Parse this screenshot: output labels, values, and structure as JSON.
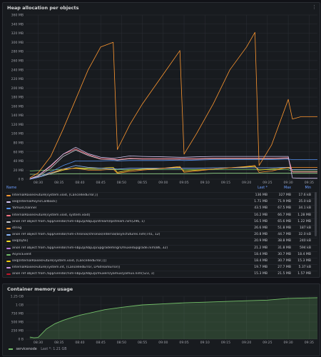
{
  "panels": {
    "heap_title": "Heap allocation per objects",
    "memory_title": "Container memory usage",
    "menu_glyph": "⋮"
  },
  "legend": {
    "columns": [
      "Name",
      "Last *",
      "Max",
      "Min"
    ],
    "rows": [
      {
        "name": "InternalRaisesFuture[system.void, (CancelledError,)]",
        "last": "136 MB",
        "max": "327 MB",
        "min": "17.6 kB",
        "color": "#ff9830"
      },
      {
        "name": "seq[InternalAsyncCallback]",
        "last": "1.71 MB",
        "max": "71.9 MB",
        "min": "35.0 kB",
        "color": "#d9c8f5"
      },
      {
        "name": "YamuxChannel",
        "last": "43.5 MB",
        "max": "67.5 MB",
        "min": "34.1 kB",
        "color": "#5794f2"
      },
      {
        "name": "InternalRaisesFuture[system.void, system.void]",
        "last": "16.2 MB",
        "max": "66.7 MB",
        "min": "1.28 MB",
        "color": "#ff7383"
      },
      {
        "name": "anon ref object from /app/vendor/nim-libp2p/libp2p/stream/lpstream.nim(296, 1)",
        "last": "16.5 MB",
        "max": "65.6 MB",
        "min": "1.22 MB",
        "color": "#c8c9d0"
      },
      {
        "name": "string",
        "last": "26.6 MB",
        "max": "51.8 MB",
        "min": "187 kB",
        "color": "#ff9830"
      },
      {
        "name": "anon ref object from /app/vendor/nim-chronos/chronos/internal/asyncfutures.nim(741, 12)",
        "last": "20.8 MB",
        "max": "44.7 MB",
        "min": "32.0 kB",
        "color": "#8ab8ff"
      },
      {
        "name": "seq[byte]",
        "last": "20.9 MB",
        "max": "38.8 MB",
        "min": "240 kB",
        "color": "#fade2a"
      },
      {
        "name": "anon ref object from /app/vendor/nim-libp2p/libp2p/upgrademngrs/muxedupgrade.nim(86, 32)",
        "last": "21.2 MB",
        "max": "31.8 MB",
        "min": "594 kB",
        "color": "#b877d9"
      },
      {
        "name": "AsyncEvent",
        "last": "18.4 MB",
        "max": "30.7 MB",
        "min": "18.4 MB",
        "color": "#73bf69"
      },
      {
        "name": "seq[InternalRaisesFuture[system.void, (CancelledError,)]]",
        "last": "18.4 MB",
        "max": "30.7 MB",
        "min": "15.3 MB",
        "color": "#f2cc0c"
      },
      {
        "name": "InternalRaisesFuture[system.int, (CancelledError, LPStreamError)]",
        "last": "19.7 MB",
        "max": "27.7 MB",
        "min": "5.37 kB",
        "color": "#ca95e5"
      },
      {
        "name": "anon ref object from /app/vendor/nim-libp2p/libp2p/muxers/yamux/yamux.nim(523, 1)",
        "last": "15.3 MB",
        "max": "21.5 MB",
        "min": "1.57 MB",
        "color": "#c4162a"
      },
      {
        "name": "anon ref object from /app/vendor/nim-chronos/chronos/asyncsync.nim(177, 32)",
        "last": "13.2 MB",
        "max": "13.2 MB",
        "min": "11.3 MB",
        "color": "#96d98d"
      },
      {
        "name": "ref CancelledError",
        "last": "9.75 MB",
        "max": "9.75 MB",
        "min": "8.69 MB",
        "color": "#ffb357"
      }
    ]
  },
  "legend2": {
    "series": "servicenode",
    "summary": "Last *: 1.21 GB"
  },
  "chart_data": [
    {
      "type": "line",
      "title": "Heap allocation per objects",
      "xlabel": "",
      "ylabel": "",
      "x_ticks": [
        "08:30",
        "08:35",
        "08:40",
        "08:45",
        "08:50",
        "08:55",
        "09:00",
        "09:05",
        "09:10",
        "09:15",
        "09:20",
        "09:25",
        "09:30",
        "09:35"
      ],
      "y_ticks": [
        "0 B",
        "20 MB",
        "40 MB",
        "60 MB",
        "80 MB",
        "100 MB",
        "120 MB",
        "140 MB",
        "160 MB",
        "180 MB",
        "200 MB",
        "220 MB",
        "240 MB",
        "260 MB",
        "280 MB",
        "300 MB",
        "320 MB",
        "340 MB",
        "360 MB"
      ],
      "ylim": [
        0,
        360
      ],
      "xlim": [
        "08:27",
        "09:37"
      ],
      "y_unit": "MB",
      "grid": true,
      "legend_placement": "bottom",
      "x": [
        "08:28",
        "08:30",
        "08:33",
        "08:36",
        "08:39",
        "08:42",
        "08:45",
        "08:48",
        "08:49",
        "08:52",
        "08:55",
        "09:00",
        "09:04",
        "09:05",
        "09:08",
        "09:12",
        "09:16",
        "09:20",
        "09:22",
        "09:23",
        "09:26",
        "09:30",
        "09:31",
        "09:33",
        "09:37"
      ],
      "series": [
        {
          "name": "InternalRaisesFuture[system.void, (CancelledError,)]",
          "color": "#ff9830",
          "values": [
            3,
            14,
            50,
            110,
            175,
            240,
            290,
            300,
            65,
            120,
            165,
            230,
            282,
            55,
            100,
            165,
            240,
            290,
            322,
            30,
            75,
            175,
            132,
            137,
            137
          ]
        },
        {
          "name": "seq[InternalAsyncCallback]",
          "color": "#d9c8f5",
          "values": [
            1,
            8,
            30,
            55,
            70,
            56,
            48,
            46,
            47,
            51,
            50,
            49,
            48,
            48,
            49,
            50,
            50,
            50,
            50,
            50,
            50,
            50,
            3,
            2,
            2
          ]
        },
        {
          "name": "YamuxChannel",
          "color": "#5794f2",
          "values": [
            0,
            4,
            16,
            30,
            40,
            40,
            40,
            41,
            40,
            41,
            41,
            41,
            42,
            41,
            42,
            43,
            43,
            43,
            43,
            43,
            43,
            44,
            43,
            43,
            43
          ]
        },
        {
          "name": "InternalRaisesFuture[system.void, system.void]",
          "color": "#ff7383",
          "values": [
            0,
            8,
            28,
            55,
            66,
            54,
            45,
            44,
            43,
            46,
            45,
            45,
            45,
            45,
            45,
            46,
            46,
            46,
            46,
            46,
            46,
            47,
            16,
            16,
            16
          ]
        },
        {
          "name": "anon ref object from /app/vendor/nim-libp2p/libp2p/stream/lpstream.nim(296, 1)",
          "color": "#c8c9d0",
          "values": [
            0,
            6,
            24,
            50,
            64,
            52,
            44,
            43,
            42,
            45,
            44,
            44,
            44,
            44,
            44,
            45,
            45,
            45,
            45,
            45,
            45,
            46,
            16,
            16,
            16
          ]
        },
        {
          "name": "string",
          "color": "#ff9830",
          "values": [
            0,
            5,
            14,
            22,
            24,
            20,
            20,
            22,
            13,
            17,
            20,
            24,
            28,
            15,
            18,
            22,
            25,
            28,
            30,
            15,
            18,
            26,
            26,
            26,
            26
          ]
        },
        {
          "name": "anon ref object from /app/vendor/nim-chronos/chronos/internal/asyncfutures.nim(741, 12)",
          "color": "#8ab8ff",
          "values": [
            0,
            4,
            12,
            22,
            30,
            26,
            24,
            23,
            22,
            24,
            24,
            24,
            24,
            24,
            24,
            25,
            25,
            25,
            25,
            25,
            25,
            26,
            21,
            21,
            21
          ]
        },
        {
          "name": "seq[byte]",
          "color": "#fade2a",
          "values": [
            0,
            4,
            12,
            20,
            25,
            24,
            24,
            26,
            15,
            20,
            22,
            24,
            26,
            18,
            20,
            22,
            25,
            27,
            28,
            20,
            22,
            25,
            21,
            21,
            21
          ]
        },
        {
          "name": "AsyncEvent",
          "color": "#73bf69",
          "values": [
            18,
            19,
            20,
            22,
            24,
            22,
            21,
            21,
            21,
            21,
            21,
            21,
            21,
            21,
            21,
            21,
            21,
            21,
            21,
            21,
            21,
            21,
            18,
            18,
            18
          ]
        },
        {
          "name": "anon ref object from /app/vendor/nim-chronos/chronos/asyncsync.nim(177, 32)",
          "color": "#96d98d",
          "values": [
            11,
            11,
            11,
            12,
            12,
            12,
            12,
            12,
            12,
            12,
            12,
            12,
            12,
            12,
            12,
            13,
            13,
            13,
            13,
            13,
            13,
            13,
            13,
            13,
            13
          ]
        }
      ]
    },
    {
      "type": "area",
      "title": "Container memory usage",
      "x_ticks": [
        "08:30",
        "08:35",
        "08:40",
        "08:45",
        "08:50",
        "08:55",
        "09:00",
        "09:05",
        "09:10",
        "09:15",
        "09:20",
        "09:25",
        "09:30",
        "09:35"
      ],
      "y_ticks": [
        "0 B",
        "250 MB",
        "500 MB",
        "750 MB",
        "1 GB",
        "1.25 GB"
      ],
      "ylim": [
        0,
        1.25
      ],
      "xlim": [
        "08:27",
        "09:37"
      ],
      "y_unit": "GB",
      "grid": true,
      "legend_placement": "bottom",
      "x": [
        "08:28",
        "08:29",
        "08:30",
        "08:32",
        "08:34",
        "08:36",
        "08:38",
        "08:40",
        "08:43",
        "08:46",
        "08:50",
        "08:55",
        "09:00",
        "09:05",
        "09:10",
        "09:15",
        "09:20",
        "09:25",
        "09:30",
        "09:33",
        "09:37"
      ],
      "series": [
        {
          "name": "servicenode",
          "color": "#73bf69",
          "values": [
            0.06,
            0.04,
            0.05,
            0.3,
            0.45,
            0.55,
            0.63,
            0.7,
            0.78,
            0.86,
            0.93,
            1.0,
            1.03,
            1.06,
            1.08,
            1.1,
            1.12,
            1.14,
            1.19,
            1.2,
            1.21
          ]
        }
      ]
    }
  ]
}
